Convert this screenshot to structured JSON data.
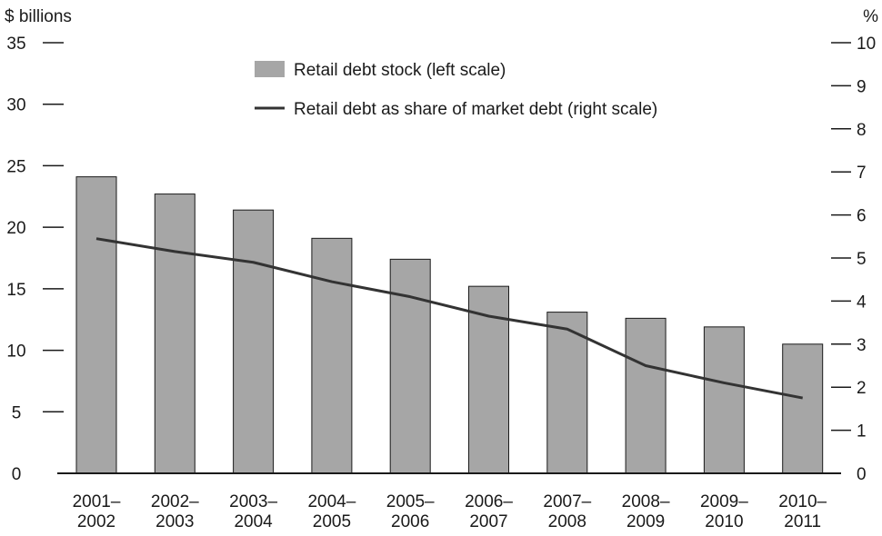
{
  "chart_data": {
    "type": "bar",
    "categories": [
      [
        "2001–",
        "2002"
      ],
      [
        "2002–",
        "2003"
      ],
      [
        "2003–",
        "2004"
      ],
      [
        "2004–",
        "2005"
      ],
      [
        "2005–",
        "2006"
      ],
      [
        "2006–",
        "2007"
      ],
      [
        "2007–",
        "2008"
      ],
      [
        "2008–",
        "2009"
      ],
      [
        "2009–",
        "2010"
      ],
      [
        "2010–",
        "2011"
      ]
    ],
    "series": [
      {
        "name": "Retail debt stock (left scale)",
        "type": "bar",
        "axis": "left",
        "color": "#a6a6a6",
        "values": [
          24.1,
          22.7,
          21.4,
          19.1,
          17.4,
          15.2,
          13.1,
          12.6,
          11.9,
          10.5
        ]
      },
      {
        "name": "Retail debt as share of market debt (right scale)",
        "type": "line",
        "axis": "right",
        "color": "#333333",
        "values": [
          5.45,
          5.15,
          4.9,
          4.45,
          4.1,
          3.65,
          3.35,
          2.5,
          2.1,
          1.75
        ]
      }
    ],
    "left_axis": {
      "unit": "$ billions",
      "min": 0,
      "max": 35,
      "ticks": [
        0,
        5,
        10,
        15,
        20,
        25,
        30,
        35
      ]
    },
    "right_axis": {
      "unit": "%",
      "min": 0,
      "max": 10,
      "ticks": [
        0,
        1,
        2,
        3,
        4,
        5,
        6,
        7,
        8,
        9,
        10
      ]
    },
    "grid": false,
    "legend_position": "top-center"
  }
}
